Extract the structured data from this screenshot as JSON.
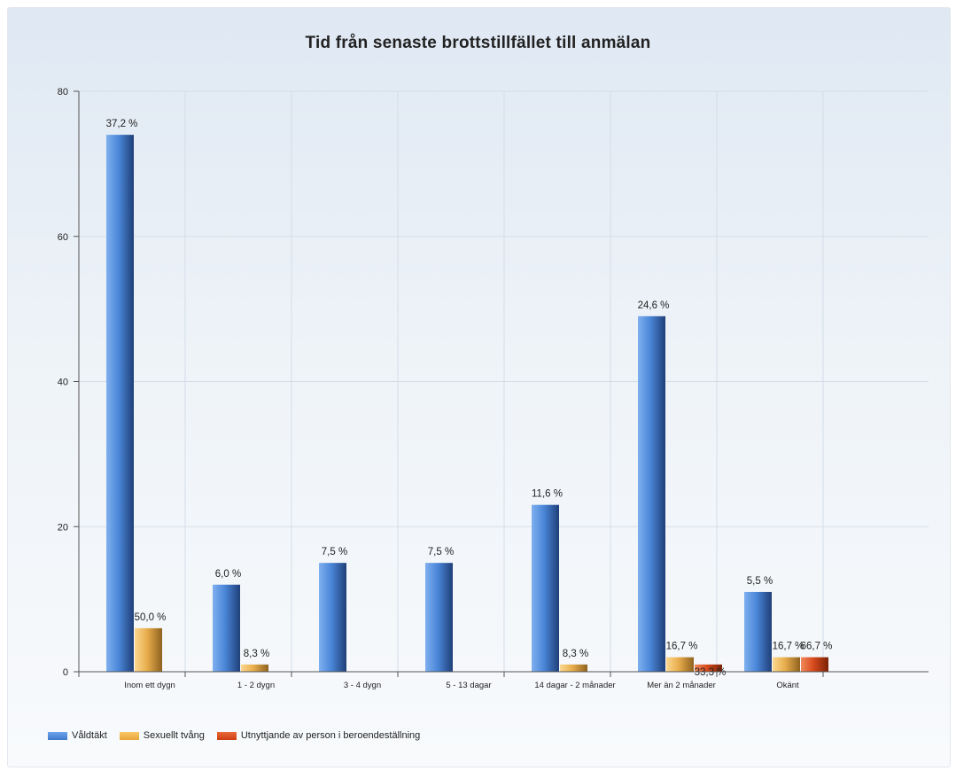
{
  "chart_data": {
    "type": "bar",
    "title": "Tid från senaste brottstillfället till anmälan",
    "xlabel": "",
    "ylabel": "",
    "ylim": [
      0,
      80
    ],
    "yticks": [
      0,
      20,
      40,
      60,
      80
    ],
    "grid": true,
    "legend_position": "bottom-left",
    "categories": [
      "Inom ett dygn",
      "1 - 2 dygn",
      "3 - 4 dygn",
      "5 - 13 dagar",
      "14 dagar - 2 månader",
      "Mer än 2 månader",
      "Okänt"
    ],
    "series": [
      {
        "name": "Våldtäkt",
        "color": "#4a86d8",
        "values": [
          74,
          12,
          15,
          15,
          23,
          49,
          11
        ],
        "labels": [
          "37,2 %",
          "6,0 %",
          "7,5 %",
          "7,5 %",
          "11,6 %",
          "24,6 %",
          "5,5 %"
        ]
      },
      {
        "name": "Sexuellt tvång",
        "color": "#f0b040",
        "values": [
          6,
          1,
          0,
          0,
          1,
          2,
          2
        ],
        "labels": [
          "50,0 %",
          "8,3 %",
          "",
          "",
          "8,3 %",
          "16,7 %",
          "16,7 %"
        ]
      },
      {
        "name": "Utnyttjande av person i beroendeställning",
        "color": "#d84a1c",
        "values": [
          0,
          0,
          0,
          0,
          0,
          1,
          2
        ],
        "labels": [
          "",
          "",
          "",
          "",
          "",
          "33,3 %",
          "66,7 %"
        ]
      }
    ]
  }
}
